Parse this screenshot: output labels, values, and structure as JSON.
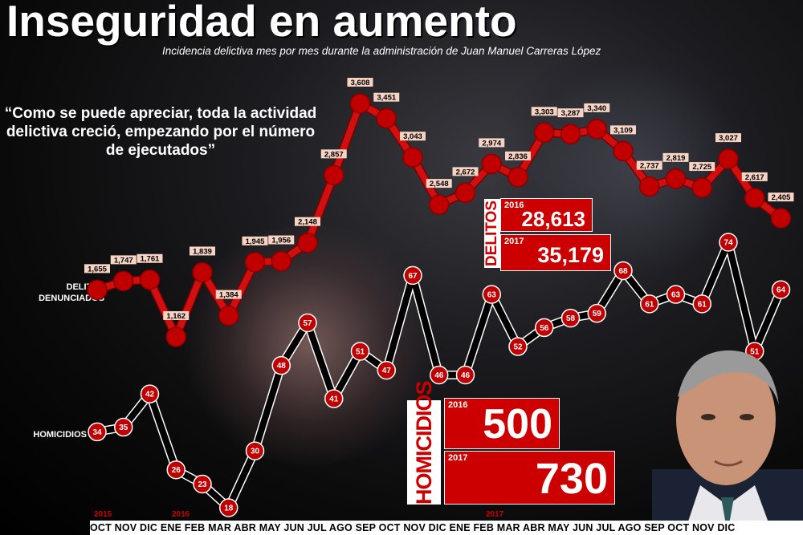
{
  "title": "Inseguridad en aumento",
  "subtitle": "Incidencia delictiva mes por mes durante la administración de Juan Manuel Carreras López",
  "quote": "“Como se puede apreciar, toda la actividad delictiva creció, empezando por el número de ejecutados”",
  "row_labels": {
    "delitos": "DELITOS DENUNCIADOS",
    "homicidios": "HOMICIDIOS"
  },
  "totals": {
    "delitos": {
      "label": "DELITOS",
      "y2016_label": "2016",
      "y2016_value": "28,613",
      "y2017_label": "2017",
      "y2017_value": "35,179"
    },
    "homicidios": {
      "label": "HOMICIDIOS",
      "y2016_label": "2016",
      "y2016_value": "500",
      "y2017_label": "2017",
      "y2017_value": "730"
    }
  },
  "months_text": "OCT NOV DIC ENE FEB MAR ABR MAY JUN JUL AGO SEP OCT NOV DIC ENE FEB MAR ABR MAY JUN JUL AGO SEP OCT NOV DIC",
  "year_markers": [
    "2015",
    "2016",
    "2017"
  ],
  "colors": {
    "accent": "#cc0000",
    "line_delitos": "#d01010",
    "line_homicidios": "#000000",
    "text": "#ffffff"
  },
  "chart_data": {
    "type": "line",
    "categories": [
      "OCT",
      "NOV",
      "DIC",
      "ENE",
      "FEB",
      "MAR",
      "ABR",
      "MAY",
      "JUN",
      "JUL",
      "AGO",
      "SEP",
      "OCT",
      "NOV",
      "DIC",
      "ENE",
      "FEB",
      "MAR",
      "ABR",
      "MAY",
      "JUN",
      "JUL",
      "AGO",
      "SEP",
      "OCT",
      "NOV",
      "DIC"
    ],
    "series": [
      {
        "name": "DELITOS DENUNCIADOS",
        "values": [
          1655,
          1747,
          1761,
          1162,
          1839,
          1384,
          1945,
          1956,
          2148,
          2857,
          3608,
          3451,
          3043,
          2548,
          2672,
          2974,
          2836,
          3303,
          3287,
          3340,
          3109,
          2737,
          2819,
          2725,
          3027,
          2617,
          2405
        ],
        "labels": [
          "1,655",
          "1,747",
          "1,761",
          "1,162",
          "1,839",
          "1,384",
          "1,945",
          "1,956",
          "2,148",
          "2,857",
          "3,608",
          "3,451",
          "3,043",
          "2,548",
          "2,672",
          "2,974",
          "2,836",
          "3,303",
          "3,287",
          "3,340",
          "3,109",
          "2,737",
          "2,819",
          "2,725",
          "3,027",
          "2,617",
          "2,405"
        ]
      },
      {
        "name": "HOMICIDIOS",
        "values": [
          34,
          35,
          42,
          26,
          23,
          18,
          30,
          48,
          57,
          41,
          51,
          47,
          67,
          46,
          46,
          63,
          52,
          56,
          58,
          59,
          68,
          61,
          63,
          61,
          74,
          51,
          64
        ],
        "labels": [
          "34",
          "35",
          "42",
          "26",
          "23",
          "18",
          "30",
          "48",
          "57",
          "41",
          "51",
          "47",
          "67",
          "46",
          "46",
          "63",
          "52",
          "56",
          "58",
          "59",
          "68",
          "61",
          "63",
          "61",
          "74",
          "51",
          "64"
        ]
      }
    ],
    "grid": false
  }
}
